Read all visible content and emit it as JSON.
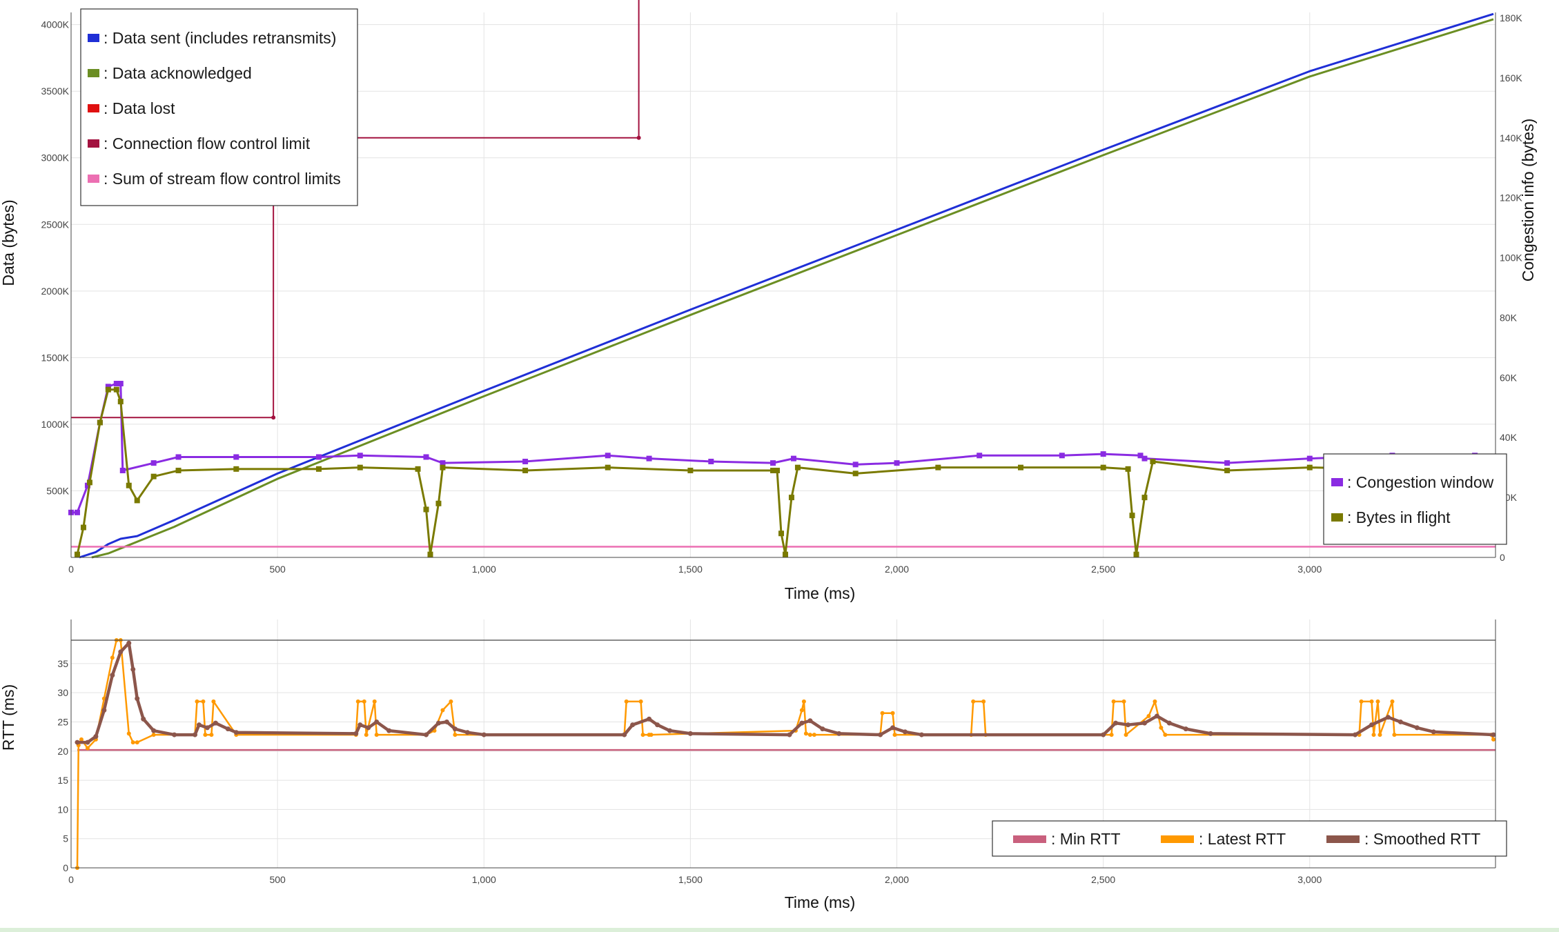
{
  "chart_data": [
    {
      "type": "line",
      "xlabel": "Time (ms)",
      "ylabel": "Data (bytes)",
      "y2label": "Congestion info (bytes)",
      "xlim": [
        0,
        3450
      ],
      "ylim": [
        0,
        4050000
      ],
      "y2lim": [
        0,
        180000
      ],
      "x_ticks": [
        0,
        500,
        1000,
        1500,
        2000,
        2500,
        3000
      ],
      "x_tick_labels": [
        "0",
        "500",
        "1,000",
        "1,500",
        "2,000",
        "2,500",
        "3,000"
      ],
      "y_ticks": [
        500000,
        1000000,
        1500000,
        2000000,
        2500000,
        3000000,
        3500000,
        4000000
      ],
      "y_tick_labels": [
        "500K",
        "1000K",
        "1500K",
        "2000K",
        "2500K",
        "3000K",
        "3500K",
        "4000K"
      ],
      "y2_ticks": [
        0,
        20000,
        40000,
        60000,
        80000,
        100000,
        120000,
        140000,
        160000,
        180000
      ],
      "y2_tick_labels": [
        "0",
        "20K",
        "40K",
        "60K",
        "80K",
        "100K",
        "120K",
        "140K",
        "160K",
        "180K"
      ],
      "grid": true,
      "legend_placement": "top-left",
      "legend2_placement": "bottom-right",
      "series": [
        {
          "name": ": Data sent (includes retransmits)",
          "axis": "y",
          "color": "#1f2fd6",
          "x": [
            20,
            60,
            90,
            120,
            160,
            250,
            500,
            1000,
            1500,
            2000,
            2500,
            3000,
            3445
          ],
          "y": [
            0,
            40000,
            100000,
            140000,
            160000,
            280000,
            630000,
            1250000,
            1860000,
            2460000,
            3060000,
            3650000,
            4080000
          ]
        },
        {
          "name": ": Data acknowledged",
          "axis": "y",
          "color": "#6b8e23",
          "x": [
            50,
            90,
            130,
            170,
            250,
            500,
            1000,
            1500,
            2000,
            2500,
            3000,
            3445
          ],
          "y": [
            0,
            30000,
            80000,
            130000,
            230000,
            590000,
            1210000,
            1820000,
            2420000,
            3020000,
            3610000,
            4040000
          ]
        },
        {
          "name": ": Data lost",
          "axis": "y",
          "color": "#e01010",
          "x": [],
          "y": []
        },
        {
          "name": ": Connection flow control limit",
          "axis": "y",
          "color": "#a3123f",
          "x": [
            0,
            490,
            490,
            1375,
            1375
          ],
          "y": [
            1050000,
            1050000,
            3150000,
            3150000,
            4200000
          ]
        },
        {
          "name": ": Sum of stream flow control limits",
          "axis": "y",
          "color": "#ec6fb2",
          "x": [
            0,
            3450
          ],
          "y": [
            80000,
            80000
          ]
        },
        {
          "name": ": Congestion window",
          "axis": "y2",
          "color": "#8a2be2",
          "x": [
            0,
            15,
            40,
            70,
            90,
            110,
            120,
            125,
            200,
            260,
            400,
            600,
            700,
            860,
            900,
            1100,
            1300,
            1400,
            1550,
            1700,
            1750,
            1900,
            2000,
            2200,
            2400,
            2500,
            2590,
            2600,
            2800,
            3000,
            3200,
            3400,
            3445
          ],
          "y": [
            15000,
            15000,
            24000,
            45000,
            57000,
            58000,
            58000,
            29000,
            31500,
            33500,
            33500,
            33500,
            34000,
            33500,
            31500,
            32000,
            34000,
            33000,
            32000,
            31500,
            33000,
            31000,
            31500,
            34000,
            34000,
            34500,
            34000,
            33000,
            31500,
            33000,
            34000,
            34000,
            33500
          ]
        },
        {
          "name": ": Bytes in flight",
          "axis": "y2",
          "color": "#7a7a00",
          "x": [
            15,
            30,
            45,
            70,
            90,
            110,
            120,
            140,
            160,
            200,
            260,
            400,
            600,
            700,
            840,
            860,
            870,
            890,
            900,
            1100,
            1300,
            1500,
            1700,
            1710,
            1720,
            1730,
            1745,
            1760,
            1900,
            2100,
            2300,
            2500,
            2560,
            2570,
            2580,
            2600,
            2620,
            2800,
            3000,
            3200,
            3400
          ],
          "y": [
            1000,
            10000,
            25000,
            45000,
            56000,
            56000,
            52000,
            24000,
            19000,
            27000,
            29000,
            29500,
            29500,
            30000,
            29500,
            16000,
            1000,
            18000,
            30000,
            29000,
            30000,
            29000,
            29000,
            29000,
            8000,
            1000,
            20000,
            30000,
            28000,
            30000,
            30000,
            30000,
            29500,
            14000,
            1000,
            20000,
            32000,
            29000,
            30000,
            29500,
            29500
          ]
        }
      ]
    },
    {
      "type": "line",
      "xlabel": "Time (ms)",
      "ylabel": "RTT (ms)",
      "xlim": [
        0,
        3450
      ],
      "ylim": [
        0,
        39
      ],
      "x_ticks": [
        0,
        500,
        1000,
        1500,
        2000,
        2500,
        3000
      ],
      "x_tick_labels": [
        "0",
        "500",
        "1,000",
        "1,500",
        "2,000",
        "2,500",
        "3,000"
      ],
      "y_ticks": [
        0,
        5,
        10,
        15,
        20,
        25,
        30,
        35
      ],
      "y_tick_labels": [
        "0",
        "5",
        "10",
        "15",
        "20",
        "25",
        "30",
        "35"
      ],
      "grid": true,
      "legend_placement": "bottom-right",
      "series": [
        {
          "name": ": Min RTT",
          "color": "#c9607d",
          "x": [
            15,
            3450
          ],
          "y": [
            20.2,
            20.2
          ]
        },
        {
          "name": ": Latest RTT",
          "color": "#ff9900",
          "x": [
            15,
            18,
            25,
            40,
            60,
            80,
            100,
            110,
            120,
            140,
            150,
            160,
            200,
            300,
            305,
            320,
            325,
            340,
            345,
            400,
            690,
            695,
            710,
            715,
            735,
            740,
            860,
            880,
            900,
            920,
            930,
            1000,
            1340,
            1345,
            1380,
            1385,
            1400,
            1405,
            1755,
            1770,
            1775,
            1780,
            1790,
            1800,
            1960,
            1965,
            1990,
            1995,
            2180,
            2185,
            2210,
            2215,
            2520,
            2525,
            2550,
            2555,
            2610,
            2625,
            2640,
            2650,
            3120,
            3125,
            3150,
            3155,
            3165,
            3170,
            3200,
            3205,
            3440,
            3445
          ],
          "y": [
            0,
            21,
            22,
            20.5,
            22,
            29,
            36,
            39,
            39,
            23,
            21.5,
            21.5,
            22.8,
            22.8,
            28.5,
            28.5,
            22.8,
            22.8,
            28.5,
            22.8,
            22.8,
            28.5,
            28.5,
            22.8,
            28.5,
            22.8,
            22.8,
            23.5,
            27,
            28.5,
            22.8,
            22.8,
            22.8,
            28.5,
            28.5,
            22.8,
            22.8,
            22.8,
            23.5,
            27,
            28.5,
            23,
            22.8,
            22.8,
            22.8,
            26.5,
            26.5,
            22.8,
            22.8,
            28.5,
            28.5,
            22.8,
            22.8,
            28.5,
            28.5,
            22.8,
            26,
            28.5,
            24,
            22.8,
            22.8,
            28.5,
            28.5,
            22.8,
            28.5,
            22.8,
            28.5,
            22.8,
            22.8,
            22
          ]
        },
        {
          "name": ": Smoothed RTT",
          "color": "#8c564b",
          "x": [
            15,
            40,
            60,
            80,
            100,
            120,
            140,
            150,
            160,
            175,
            200,
            250,
            300,
            310,
            330,
            350,
            380,
            400,
            690,
            700,
            720,
            740,
            770,
            860,
            890,
            910,
            930,
            960,
            1000,
            1340,
            1360,
            1400,
            1420,
            1450,
            1500,
            1740,
            1770,
            1790,
            1820,
            1860,
            1960,
            1990,
            2020,
            2060,
            2500,
            2530,
            2560,
            2600,
            2630,
            2660,
            2700,
            2760,
            3110,
            3150,
            3190,
            3220,
            3260,
            3300,
            3445
          ],
          "y": [
            21.5,
            21.5,
            22.5,
            27,
            33,
            37,
            38.5,
            34,
            29,
            25.5,
            23.5,
            22.8,
            22.8,
            24.5,
            24,
            24.8,
            23.8,
            23.2,
            23,
            24.5,
            24,
            25,
            23.5,
            22.8,
            24.8,
            25,
            23.8,
            23.2,
            22.8,
            22.8,
            24.5,
            25.5,
            24.5,
            23.5,
            23,
            22.8,
            24.8,
            25.2,
            23.8,
            23,
            22.8,
            24,
            23.3,
            22.8,
            22.8,
            24.8,
            24.5,
            24.8,
            26,
            24.8,
            23.8,
            23,
            22.8,
            24.5,
            25.8,
            25,
            24,
            23.3,
            22.8
          ]
        }
      ]
    }
  ]
}
